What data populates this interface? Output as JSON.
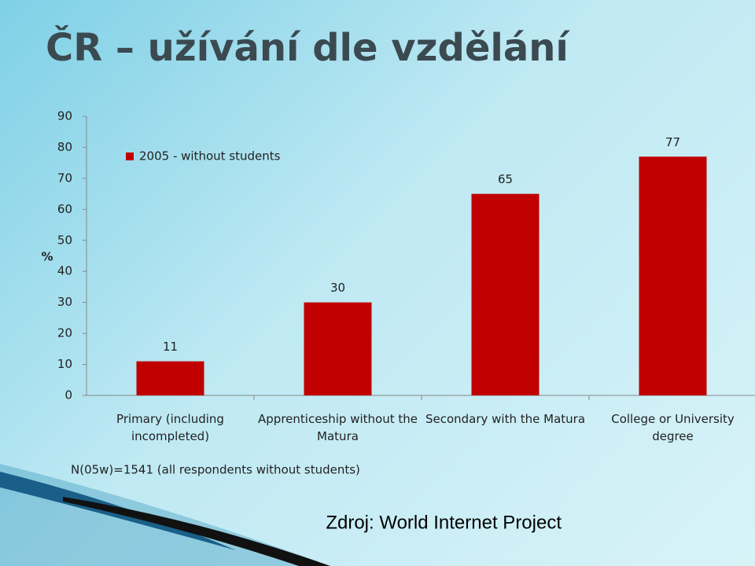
{
  "chart_data": {
    "type": "bar",
    "title": "ČR – užívání dle vzdělání",
    "y_label": "%",
    "categories": [
      "Primary (including incompleted)",
      "Apprenticeship without the Matura",
      "Secondary with the Matura",
      "College or University degree"
    ],
    "series": [
      {
        "name": "2005 - without students",
        "color": "#c00000",
        "values": [
          11,
          30,
          65,
          77
        ]
      }
    ],
    "ylim": [
      0,
      90
    ],
    "yticks": [
      0,
      10,
      20,
      30,
      40,
      50,
      60,
      70,
      80,
      90
    ],
    "legend": "upper-left",
    "note": "N(05w)=1541 (all respondents without students)",
    "source": "Zdroj: World Internet Project"
  }
}
